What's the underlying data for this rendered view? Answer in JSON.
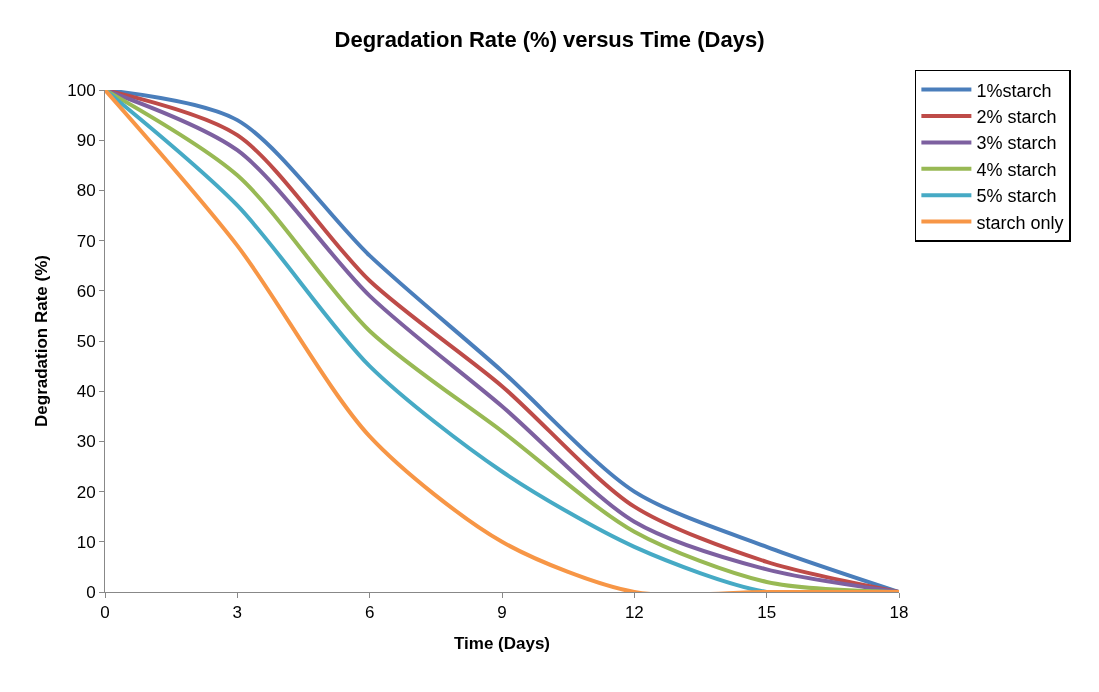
{
  "chart_data": {
    "type": "line",
    "title": "Degradation Rate (%) versus Time (Days)",
    "xlabel": "Time (Days)",
    "ylabel": "Degradation Rate (%)",
    "x": [
      0,
      3,
      6,
      9,
      12,
      15,
      18
    ],
    "series": [
      {
        "name": "1%starch",
        "color": "#4a7ebb",
        "values": [
          100,
          94,
          67,
          44,
          20,
          9,
          0
        ]
      },
      {
        "name": "2% starch",
        "color": "#be4b48",
        "values": [
          100,
          91,
          62,
          41,
          17,
          6,
          0
        ]
      },
      {
        "name": "3% starch",
        "color": "#7d60a0",
        "values": [
          100,
          88,
          59,
          37,
          14,
          4.5,
          0
        ]
      },
      {
        "name": "4% starch",
        "color": "#98b954",
        "values": [
          100,
          83,
          52,
          32,
          12,
          2,
          0
        ]
      },
      {
        "name": "5% starch",
        "color": "#46aac5",
        "values": [
          100,
          77,
          45,
          24,
          9,
          0,
          0
        ]
      },
      {
        "name": "starch only",
        "color": "#f79646",
        "values": [
          100,
          69,
          31,
          10,
          0,
          0,
          0
        ]
      }
    ],
    "xlim": [
      0,
      18
    ],
    "xticks": [
      0,
      3,
      6,
      9,
      12,
      15,
      18
    ],
    "ylim": [
      0,
      100
    ],
    "yticks": [
      0,
      10,
      20,
      30,
      40,
      50,
      60,
      70,
      80,
      90,
      100
    ],
    "legend": "top right",
    "marker": "none",
    "line_style": "solid"
  }
}
